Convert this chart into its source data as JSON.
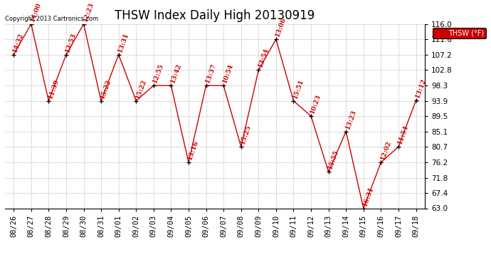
{
  "title": "THSW Index Daily High 20130919",
  "copyright_text": "Copyright 2013 Cartronics.com",
  "legend_label": "THSW (°F)",
  "dates": [
    "08/26",
    "08/27",
    "08/28",
    "08/29",
    "08/30",
    "08/31",
    "09/01",
    "09/02",
    "09/03",
    "09/04",
    "09/05",
    "09/06",
    "09/07",
    "09/08",
    "09/09",
    "09/10",
    "09/11",
    "09/12",
    "09/13",
    "09/14",
    "09/15",
    "09/16",
    "09/17",
    "09/18"
  ],
  "values": [
    107.2,
    116.0,
    93.9,
    107.2,
    116.0,
    93.9,
    107.2,
    93.9,
    98.3,
    98.3,
    76.2,
    98.3,
    98.3,
    80.7,
    102.8,
    111.6,
    93.9,
    89.5,
    73.5,
    85.1,
    63.0,
    76.2,
    80.7,
    94.0
  ],
  "time_labels": [
    "14:32",
    "14:00",
    "11:39",
    "13:53",
    "12:23",
    "15:22",
    "13:31",
    "15:22",
    "12:55",
    "13:42",
    "13:16",
    "13:37",
    "10:54",
    "15:25",
    "13:54",
    "13:06",
    "15:51",
    "10:23",
    "15:55",
    "13:23",
    "16:31",
    "12:02",
    "11:54",
    "13:12"
  ],
  "ylim": [
    63.0,
    116.0
  ],
  "yticks": [
    63.0,
    67.4,
    71.8,
    76.2,
    80.7,
    85.1,
    89.5,
    93.9,
    98.3,
    102.8,
    107.2,
    111.6,
    116.0
  ],
  "line_color": "#cc0000",
  "marker_color": "#000000",
  "label_color": "#cc0000",
  "bg_color": "#ffffff",
  "grid_color": "#aaaaaa",
  "legend_bg": "#cc0000",
  "legend_text_color": "#ffffff",
  "title_fontsize": 12,
  "label_fontsize": 6.5,
  "tick_fontsize": 7.5,
  "copyright_fontsize": 6
}
